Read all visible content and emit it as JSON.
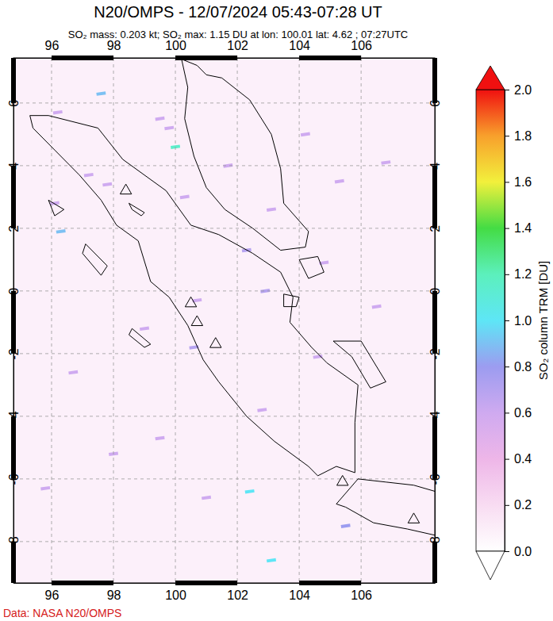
{
  "chart_data": {
    "type": "map",
    "title": "N20/OMPS - 12/07/2024 05:43-07:28 UT",
    "subtitle": "SO₂ mass: 0.203 kt; SO₂ max: 1.15 DU at lon: 100.01 lat: 4.62 ; 07:27UTC",
    "source": "Data: NASA N20/OMPS",
    "xlim": [
      94.77,
      108.38
    ],
    "ylim": [
      -9.32,
      7.44
    ],
    "xticks": [
      96,
      98,
      100,
      102,
      104,
      106
    ],
    "yticks": [
      -8,
      -6,
      -4,
      -2,
      0,
      2,
      4,
      6
    ],
    "grid": true,
    "colorbar": {
      "label": "SO₂ column TRM [DU]",
      "range": [
        0,
        2
      ],
      "ticks": [
        {
          "value": 0,
          "label": "0.0"
        },
        {
          "value": 0.2,
          "label": "0.2"
        },
        {
          "value": 0.4,
          "label": "0.4"
        },
        {
          "value": 0.6,
          "label": "0.6"
        },
        {
          "value": 0.8,
          "label": "0.8"
        },
        {
          "value": 1,
          "label": "1.0"
        },
        {
          "value": 1.2,
          "label": "1.2"
        },
        {
          "value": 1.4,
          "label": "1.4"
        },
        {
          "value": 1.6,
          "label": "1.6"
        },
        {
          "value": 1.8,
          "label": "1.8"
        },
        {
          "value": 2,
          "label": "2.0"
        }
      ]
    },
    "pixels": {
      "lon": [
        97.6,
        99.8,
        100.0,
        99.5,
        96.2,
        97.2,
        96.1,
        96.3,
        97.8,
        100.3,
        101.7,
        102.3,
        103.1,
        104.2,
        105.3,
        106.8,
        102.9,
        104.8,
        100.7,
        99.0,
        100.6,
        104.6,
        96.7,
        102.8,
        98.0,
        102.4,
        103.1,
        105.5,
        106.5,
        101.0,
        99.5,
        95.8
      ],
      "lat": [
        6.3,
        5.2,
        4.6,
        5.5,
        5.7,
        3.7,
        2.8,
        1.9,
        3.4,
        3.0,
        4.0,
        1.3,
        2.6,
        5.0,
        3.5,
        4.1,
        0.0,
        0.9,
        -0.3,
        -1.2,
        -1.8,
        -2.1,
        -2.6,
        -3.8,
        -5.2,
        -6.4,
        -8.6,
        -7.5,
        -0.5,
        -6.6,
        -4.7,
        -6.3
      ],
      "values": [
        0.9,
        0.6,
        1.15,
        0.6,
        0.6,
        0.6,
        0.6,
        0.9,
        0.6,
        0.6,
        0.6,
        0.7,
        0.6,
        0.6,
        0.6,
        0.6,
        0.7,
        0.6,
        0.6,
        0.6,
        0.7,
        0.6,
        0.6,
        0.6,
        0.6,
        1.0,
        1.0,
        0.8,
        0.6,
        0.6,
        0.6,
        0.6
      ]
    },
    "volcanoes": {
      "lon": [
        98.4,
        100.5,
        100.7,
        101.3,
        105.4,
        107.7
      ],
      "lat": [
        3.2,
        -0.4,
        -1.0,
        -1.7,
        -6.1,
        -7.3
      ]
    },
    "coastlines": [
      {
        "lon": [
          95.3,
          95.9,
          97.5,
          98.3,
          99.7,
          100.5,
          101.4,
          102.5,
          103.4,
          103.8,
          103.7,
          104.4,
          104.9,
          105.9,
          105.8,
          105.8,
          105.2,
          104.6,
          104.3,
          103.2,
          102.3,
          101.4,
          100.9,
          100.4,
          99.8,
          99.2,
          98.8,
          98.1,
          97.6,
          96.9,
          96.1,
          95.4,
          95.3
        ],
        "lat": [
          5.6,
          5.6,
          5.2,
          4.2,
          3.2,
          2.1,
          1.8,
          1.2,
          0.6,
          -0.2,
          -1.0,
          -1.8,
          -2.3,
          -3.0,
          -4.2,
          -5.8,
          -5.6,
          -5.9,
          -5.6,
          -4.8,
          -4.0,
          -2.9,
          -2.2,
          -1.1,
          -0.2,
          0.3,
          1.6,
          2.1,
          2.9,
          3.7,
          4.5,
          5.2,
          5.6
        ]
      },
      {
        "lon": [
          100.2,
          100.4,
          100.3,
          100.6,
          101.0,
          101.6,
          102.5,
          103.4,
          104.2,
          104.3,
          103.5,
          103.4,
          103.1,
          102.4,
          101.5,
          101.0,
          100.7,
          100.2
        ],
        "lat": [
          7.4,
          6.5,
          5.5,
          4.3,
          3.3,
          2.6,
          2.0,
          1.3,
          1.4,
          1.9,
          2.8,
          3.9,
          5.0,
          6.1,
          6.8,
          6.9,
          7.2,
          7.4
        ]
      },
      {
        "lon": [
          105.2,
          105.9,
          106.8,
          107.7,
          108.4,
          108.4,
          107.5,
          106.4,
          105.5,
          105.2
        ],
        "lat": [
          -6.8,
          -6.0,
          -6.1,
          -6.2,
          -6.4,
          -7.8,
          -7.6,
          -7.4,
          -6.9,
          -6.8
        ]
      },
      {
        "lon": [
          105.1,
          106.0,
          106.8,
          106.3,
          105.7,
          105.1
        ],
        "lat": [
          -1.6,
          -1.6,
          -2.9,
          -3.1,
          -2.1,
          -1.6
        ]
      },
      {
        "lon": [
          95.9,
          96.4,
          96.1,
          95.9
        ],
        "lat": [
          2.9,
          2.6,
          2.4,
          2.9
        ]
      },
      {
        "lon": [
          97.1,
          97.8,
          97.6,
          97.0,
          97.1
        ],
        "lat": [
          1.5,
          0.8,
          0.5,
          1.2,
          1.5
        ]
      },
      {
        "lon": [
          98.6,
          99.2,
          99.0,
          98.5,
          98.6
        ],
        "lat": [
          -1.2,
          -1.7,
          -1.8,
          -1.4,
          -1.2
        ]
      },
      {
        "lon": [
          98.5,
          99.0,
          98.9,
          98.6,
          98.5
        ],
        "lat": [
          2.8,
          2.5,
          2.4,
          2.6,
          2.8
        ]
      },
      {
        "lon": [
          104.0,
          104.6,
          104.8,
          104.3,
          104.0
        ],
        "lat": [
          1.0,
          1.1,
          0.6,
          0.4,
          1.0
        ]
      },
      {
        "lon": [
          103.5,
          104.0,
          103.9,
          103.5,
          103.5
        ],
        "lat": [
          -0.1,
          -0.2,
          -0.5,
          -0.5,
          -0.1
        ]
      }
    ]
  }
}
